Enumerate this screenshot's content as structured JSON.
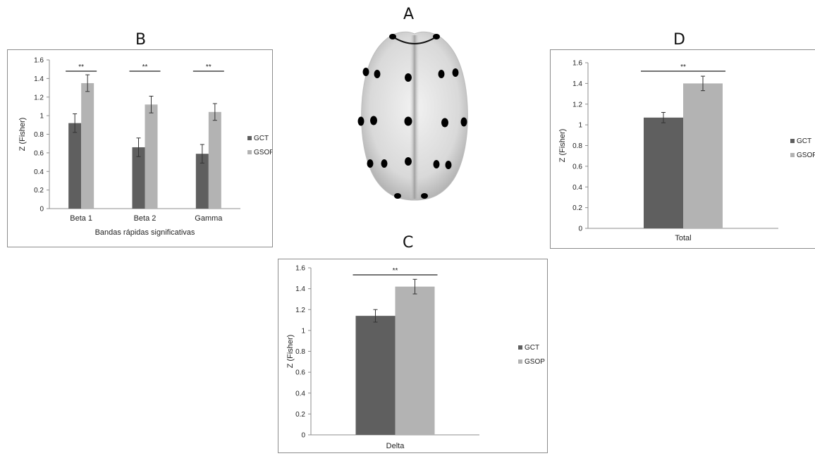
{
  "panel_labels": {
    "a": "A",
    "b": "B",
    "c": "C",
    "d": "D"
  },
  "colors": {
    "gct": "#5f5f5f",
    "gsop": "#b3b3b3",
    "axis": "#8c8c8c",
    "errorbar": "#333333"
  },
  "electrode_map": {
    "description_icon": "brain-topview-icon"
  },
  "chart_data": [
    {
      "panel": "B",
      "type": "bar",
      "title": "",
      "categories": [
        "Beta 1",
        "Beta 2",
        "Gamma"
      ],
      "series": [
        {
          "name": "GCT",
          "values": [
            0.92,
            0.66,
            0.59
          ],
          "errors": [
            0.1,
            0.1,
            0.1
          ]
        },
        {
          "name": "GSOP",
          "values": [
            1.35,
            1.12,
            1.04
          ],
          "errors": [
            0.09,
            0.09,
            0.09
          ]
        }
      ],
      "significance": [
        "**",
        "**",
        "**"
      ],
      "xlabel": "Bandas rápidas significativas",
      "ylabel": "Z (Fisher)",
      "ylim": [
        0,
        1.6
      ],
      "yticks": [
        "0",
        "0.2",
        "0.4",
        "0.6",
        "0.8",
        "1",
        "1.2",
        "1.4",
        "1.6"
      ],
      "legend": "right",
      "grid": false
    },
    {
      "panel": "C",
      "type": "bar",
      "title": "",
      "categories": [
        "Delta"
      ],
      "series": [
        {
          "name": "GCT",
          "values": [
            1.14
          ],
          "errors": [
            0.06
          ]
        },
        {
          "name": "GSOP",
          "values": [
            1.42
          ],
          "errors": [
            0.07
          ]
        }
      ],
      "significance": [
        "**"
      ],
      "xlabel": "",
      "ylabel": "Z (Fisher)",
      "ylim": [
        0,
        1.6
      ],
      "yticks": [
        "0",
        "0.2",
        "0.4",
        "0.6",
        "0.8",
        "1",
        "1.2",
        "1.4",
        "1.6"
      ],
      "legend": "right",
      "grid": false
    },
    {
      "panel": "D",
      "type": "bar",
      "title": "",
      "categories": [
        "Total"
      ],
      "series": [
        {
          "name": "GCT",
          "values": [
            1.07
          ],
          "errors": [
            0.05
          ]
        },
        {
          "name": "GSOP",
          "values": [
            1.4
          ],
          "errors": [
            0.07
          ]
        }
      ],
      "significance": [
        "**"
      ],
      "xlabel": "",
      "ylabel": "Z (Fisher)",
      "ylim": [
        0,
        1.6
      ],
      "yticks": [
        "0",
        "0.2",
        "0.4",
        "0.6",
        "0.8",
        "1",
        "1.2",
        "1.4",
        "1.6"
      ],
      "legend": "right",
      "grid": false
    }
  ]
}
